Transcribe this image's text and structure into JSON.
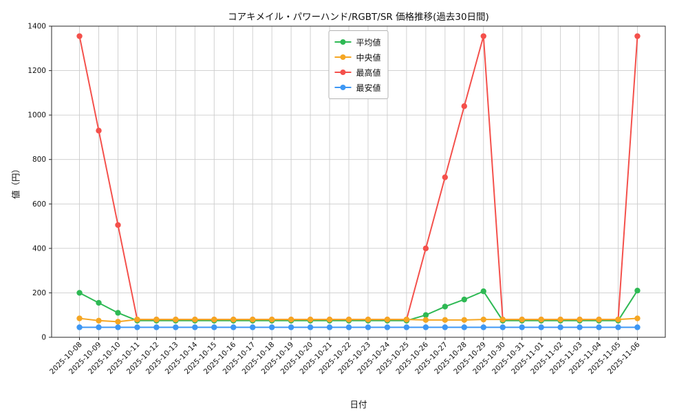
{
  "chart_data": {
    "type": "line",
    "title": "コアキメイル・パワーハンド/RGBT/SR 価格推移(過去30日間)",
    "xlabel": "日付",
    "ylabel": "値（円）",
    "grid": true,
    "legend_position": "upper center",
    "yticks": [
      0,
      200,
      400,
      600,
      800,
      1000,
      1200,
      1400
    ],
    "ylim": [
      0,
      1400
    ],
    "x": [
      "2025-10-08",
      "2025-10-09",
      "2025-10-10",
      "2025-10-11",
      "2025-10-12",
      "2025-10-13",
      "2025-10-14",
      "2025-10-15",
      "2025-10-16",
      "2025-10-17",
      "2025-10-18",
      "2025-10-19",
      "2025-10-20",
      "2025-10-21",
      "2025-10-22",
      "2025-10-23",
      "2025-10-24",
      "2025-10-25",
      "2025-10-26",
      "2025-10-27",
      "2025-10-28",
      "2025-10-29",
      "2025-10-30",
      "2025-10-31",
      "2025-11-01",
      "2025-11-02",
      "2025-11-03",
      "2025-11-04",
      "2025-11-05",
      "2025-11-06"
    ],
    "series": [
      {
        "name": "平均値",
        "color": "#2eb954",
        "values": [
          200,
          155,
          110,
          75,
          75,
          75,
          75,
          75,
          75,
          75,
          75,
          75,
          75,
          75,
          75,
          75,
          75,
          75,
          100,
          138,
          170,
          207,
          75,
          75,
          75,
          75,
          75,
          75,
          75,
          210
        ]
      },
      {
        "name": "中央値",
        "color": "#f5a623",
        "values": [
          85,
          75,
          70,
          80,
          80,
          80,
          80,
          80,
          80,
          80,
          80,
          80,
          80,
          80,
          80,
          80,
          80,
          80,
          78,
          78,
          78,
          80,
          80,
          80,
          80,
          80,
          80,
          80,
          80,
          85
        ]
      },
      {
        "name": "最高値",
        "color": "#f4504b",
        "values": [
          1355,
          930,
          505,
          80,
          80,
          80,
          80,
          80,
          80,
          80,
          80,
          80,
          80,
          80,
          80,
          80,
          80,
          80,
          400,
          720,
          1040,
          1355,
          80,
          80,
          80,
          80,
          80,
          80,
          80,
          1355
        ]
      },
      {
        "name": "最安値",
        "color": "#3d97f4",
        "values": [
          45,
          45,
          45,
          45,
          45,
          45,
          45,
          45,
          45,
          45,
          45,
          45,
          45,
          45,
          45,
          45,
          45,
          45,
          45,
          45,
          45,
          45,
          45,
          45,
          45,
          45,
          45,
          45,
          45,
          45
        ]
      }
    ]
  }
}
